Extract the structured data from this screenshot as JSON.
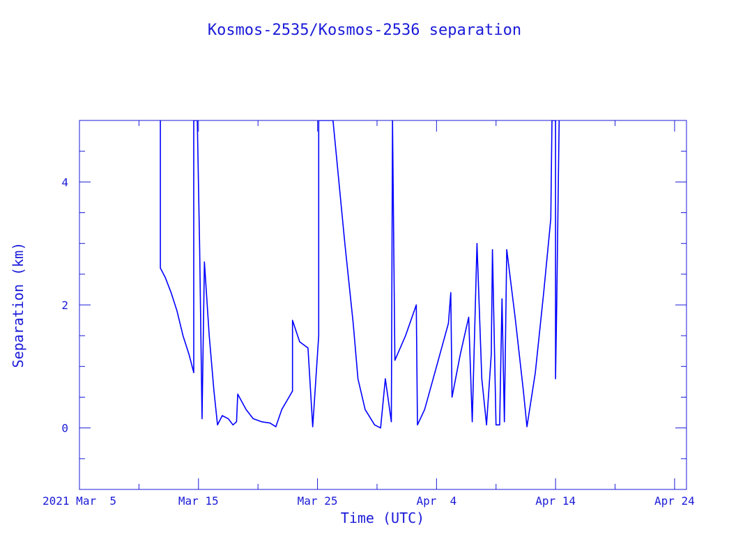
{
  "chart_data": {
    "type": "line",
    "title": "Kosmos-2535/Kosmos-2536 separation",
    "xlabel": "Time (UTC)",
    "ylabel": "Separation (km)",
    "x_unit": "days since 2021 Mar 5 00:00 UTC",
    "xlim": [
      0,
      51
    ],
    "ylim": [
      -1,
      5
    ],
    "xticks": [
      {
        "value": 0,
        "label": "2021 Mar  5"
      },
      {
        "value": 10,
        "label": "Mar 15"
      },
      {
        "value": 20,
        "label": "Mar 25"
      },
      {
        "value": 30,
        "label": "Apr  4"
      },
      {
        "value": 40,
        "label": "Apr 14"
      },
      {
        "value": 50,
        "label": "Apr 24"
      }
    ],
    "yticks": [
      {
        "value": 0,
        "label": "0"
      },
      {
        "value": 2,
        "label": "2"
      },
      {
        "value": 4,
        "label": "4"
      }
    ],
    "color": "#0000ff",
    "series": [
      {
        "name": "separation",
        "points": [
          [
            6.8,
            5.0
          ],
          [
            6.8,
            2.6
          ],
          [
            7.2,
            2.45
          ],
          [
            7.7,
            2.2
          ],
          [
            8.2,
            1.9
          ],
          [
            8.7,
            1.5
          ],
          [
            9.2,
            1.2
          ],
          [
            9.6,
            0.9
          ],
          [
            9.6,
            5.0
          ],
          [
            9.9,
            5.0
          ],
          [
            10.1,
            2.9
          ],
          [
            10.3,
            0.15
          ],
          [
            10.5,
            2.7
          ],
          [
            10.9,
            1.5
          ],
          [
            11.3,
            0.6
          ],
          [
            11.6,
            0.05
          ],
          [
            12.0,
            0.2
          ],
          [
            12.5,
            0.15
          ],
          [
            12.9,
            0.05
          ],
          [
            13.2,
            0.1
          ],
          [
            13.3,
            0.55
          ],
          [
            14.0,
            0.3
          ],
          [
            14.6,
            0.15
          ],
          [
            15.3,
            0.1
          ],
          [
            16.0,
            0.08
          ],
          [
            16.5,
            0.02
          ],
          [
            17.0,
            0.3
          ],
          [
            17.6,
            0.5
          ],
          [
            17.9,
            0.6
          ],
          [
            17.9,
            1.75
          ],
          [
            18.5,
            1.4
          ],
          [
            19.2,
            1.3
          ],
          [
            19.6,
            0.02
          ],
          [
            20.1,
            1.5
          ],
          [
            20.1,
            5.0
          ],
          [
            21.3,
            5.0
          ],
          [
            22.3,
            3.0
          ],
          [
            23.0,
            1.7
          ],
          [
            23.4,
            0.8
          ],
          [
            24.0,
            0.3
          ],
          [
            24.8,
            0.05
          ],
          [
            25.3,
            0.0
          ],
          [
            25.7,
            0.8
          ],
          [
            26.2,
            0.1
          ],
          [
            26.3,
            5.0
          ],
          [
            26.5,
            1.1
          ],
          [
            27.4,
            1.5
          ],
          [
            28.3,
            2.0
          ],
          [
            28.4,
            0.05
          ],
          [
            29.0,
            0.3
          ],
          [
            30.0,
            1.0
          ],
          [
            31.0,
            1.7
          ],
          [
            31.2,
            2.2
          ],
          [
            31.3,
            0.5
          ],
          [
            32.0,
            1.2
          ],
          [
            32.7,
            1.8
          ],
          [
            33.0,
            0.1
          ],
          [
            33.4,
            3.0
          ],
          [
            33.8,
            0.8
          ],
          [
            34.2,
            0.05
          ],
          [
            34.6,
            1.2
          ],
          [
            34.7,
            2.9
          ],
          [
            35.0,
            0.05
          ],
          [
            35.3,
            0.05
          ],
          [
            35.5,
            2.1
          ],
          [
            35.7,
            0.1
          ],
          [
            35.9,
            2.9
          ],
          [
            36.6,
            1.8
          ],
          [
            37.3,
            0.6
          ],
          [
            37.6,
            0.02
          ],
          [
            38.3,
            0.9
          ],
          [
            39.0,
            2.2
          ],
          [
            39.6,
            3.4
          ],
          [
            39.7,
            5.0
          ],
          [
            40.0,
            5.0
          ],
          [
            40.0,
            0.8
          ],
          [
            40.1,
            2.0
          ],
          [
            40.3,
            5.0
          ]
        ]
      }
    ]
  }
}
